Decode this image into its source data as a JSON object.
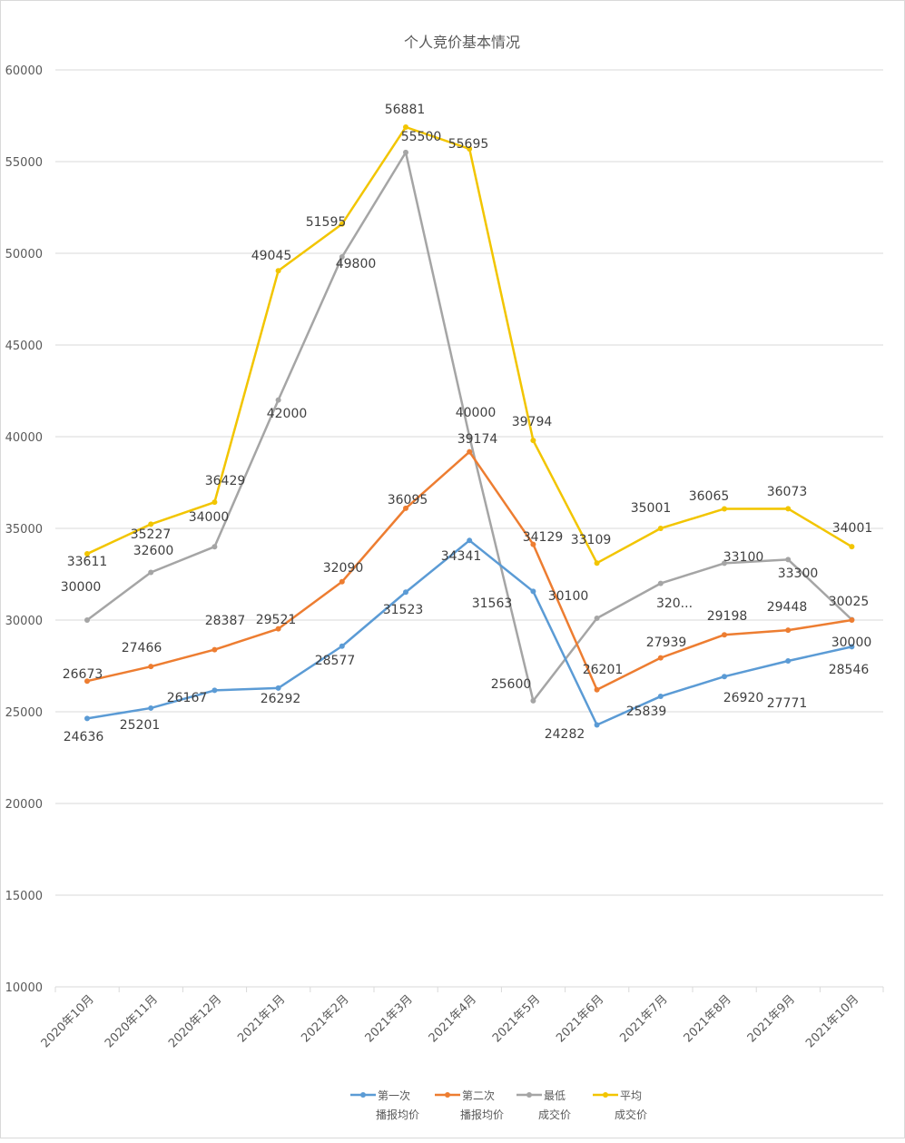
{
  "chart_data": {
    "type": "line",
    "title": "个人竞价基本情况",
    "categories": [
      "2020年10月",
      "2020年11月",
      "2020年12月",
      "2021年1月",
      "2021年2月",
      "2021年3月",
      "2021年4月",
      "2021年5月",
      "2021年6月",
      "2021年7月",
      "2021年8月",
      "2021年9月",
      "2021年10月"
    ],
    "ylim": [
      10000,
      60000
    ],
    "yticks": [
      10000,
      15000,
      20000,
      25000,
      30000,
      35000,
      40000,
      45000,
      50000,
      55000,
      60000
    ],
    "grid": true,
    "legend_position": "bottom",
    "series": [
      {
        "name": "第一次播报均价",
        "name_lines": [
          "第一次",
          "播报均价"
        ],
        "color": "#5b9bd5",
        "values": [
          24636,
          25201,
          26167,
          26292,
          28577,
          31523,
          34341,
          31563,
          24282,
          25839,
          26920,
          27771,
          28546
        ],
        "labels": [
          "24636",
          "25201",
          "26167",
          "26292",
          "28577",
          "31523",
          "34341",
          "31563",
          "24282",
          "25839",
          "26920",
          "27771",
          "28546"
        ]
      },
      {
        "name": "第二次播报均价",
        "name_lines": [
          "第二次",
          "播报均价"
        ],
        "color": "#ed7d31",
        "values": [
          26673,
          27466,
          28387,
          29521,
          32090,
          36095,
          39174,
          34129,
          26201,
          27939,
          29198,
          29448,
          30000
        ],
        "labels": [
          "26673",
          "27466",
          "28387",
          "29521",
          "32090",
          "36095",
          "39174",
          "34129",
          "26201",
          "27939",
          "29198",
          "29448",
          "30000"
        ]
      },
      {
        "name": "最低成交价",
        "name_lines": [
          "最低",
          "成交价"
        ],
        "color": "#a5a5a5",
        "values": [
          30000,
          32600,
          34000,
          42000,
          49800,
          55500,
          40000,
          25600,
          30100,
          32000,
          33100,
          33300,
          30025
        ],
        "labels": [
          "30000",
          "32600",
          "34000",
          "42000",
          "49800",
          "55500",
          "40000",
          "25600",
          "30100",
          "320...",
          "33100",
          "33300",
          "30025"
        ]
      },
      {
        "name": "平均成交价",
        "name_lines": [
          "平均",
          "成交价"
        ],
        "color": "#f2c500",
        "values": [
          33611,
          35227,
          36429,
          49045,
          51595,
          56881,
          55695,
          39794,
          33109,
          35001,
          36065,
          36073,
          34001
        ],
        "labels": [
          "33611",
          "35227",
          "36429",
          "49045",
          "51595",
          "56881",
          "55695",
          "39794",
          "33109",
          "35001",
          "36065",
          "36073",
          "34001"
        ]
      }
    ]
  }
}
